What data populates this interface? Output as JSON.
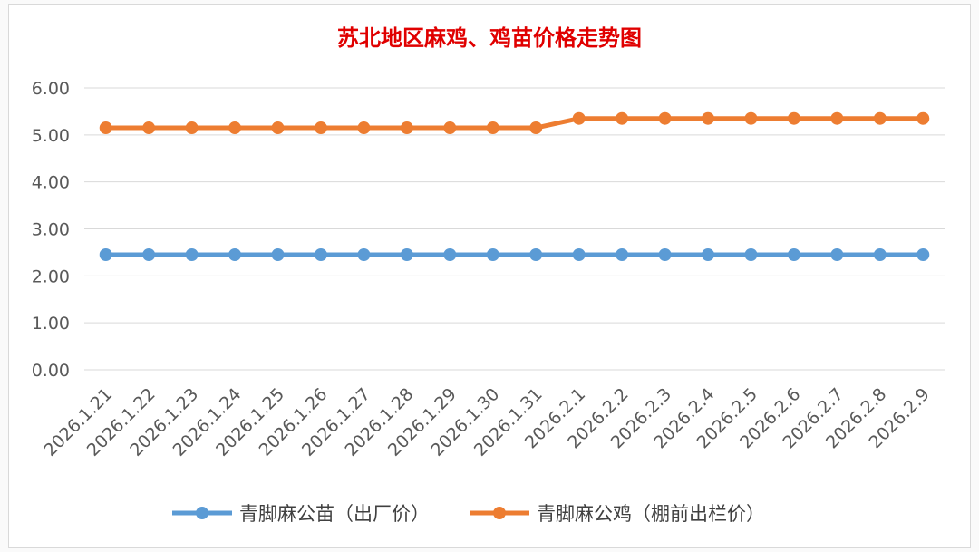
{
  "chart_data": {
    "type": "line",
    "title": "苏北地区麻鸡、鸡苗价格走势图",
    "categories": [
      "2026.1.21",
      "2026.1.22",
      "2026.1.23",
      "2026.1.24",
      "2026.1.25",
      "2026.1.26",
      "2026.1.27",
      "2026.1.28",
      "2026.1.29",
      "2026.1.30",
      "2026.1.31",
      "2026.2.1",
      "2026.2.2",
      "2026.2.3",
      "2026.2.4",
      "2026.2.5",
      "2026.2.6",
      "2026.2.7",
      "2026.2.8",
      "2026.2.9"
    ],
    "y_ticks": [
      "0.00",
      "1.00",
      "2.00",
      "3.00",
      "4.00",
      "5.00",
      "6.00"
    ],
    "ylim": [
      0,
      6
    ],
    "grid": true,
    "legend_position": "bottom",
    "series": [
      {
        "name": "青脚麻公苗（出厂价）",
        "color": "#5b9bd5",
        "values": [
          2.45,
          2.45,
          2.45,
          2.45,
          2.45,
          2.45,
          2.45,
          2.45,
          2.45,
          2.45,
          2.45,
          2.45,
          2.45,
          2.45,
          2.45,
          2.45,
          2.45,
          2.45,
          2.45,
          2.45
        ]
      },
      {
        "name": "青脚麻公鸡（棚前出栏价）",
        "color": "#ed7d31",
        "values": [
          5.15,
          5.15,
          5.15,
          5.15,
          5.15,
          5.15,
          5.15,
          5.15,
          5.15,
          5.15,
          5.15,
          5.35,
          5.35,
          5.35,
          5.35,
          5.35,
          5.35,
          5.35,
          5.35,
          5.35
        ]
      }
    ],
    "title_color": "#e00000"
  }
}
